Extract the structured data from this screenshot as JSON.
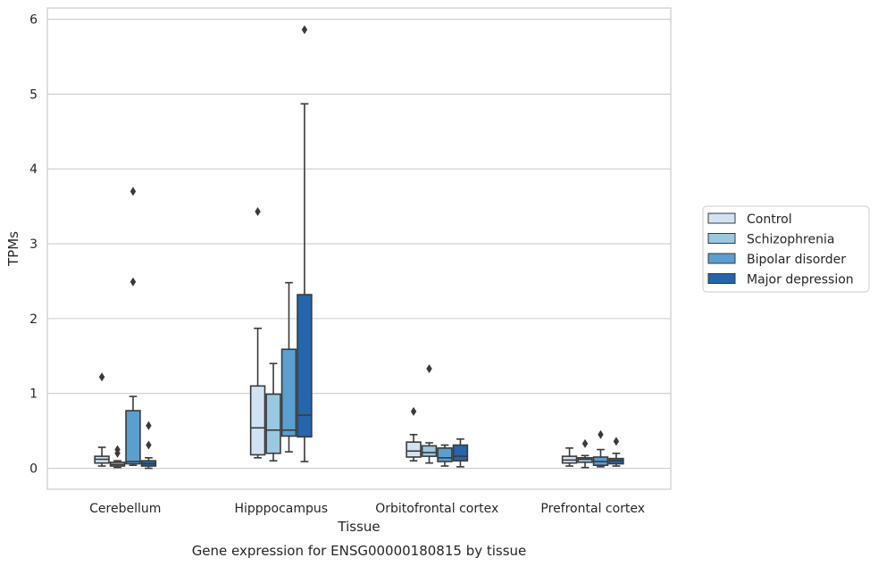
{
  "chart_data": {
    "type": "box",
    "xlabel": "Tissue",
    "ylabel": "TPMs",
    "caption": "Gene expression for ENSG00000180815 by tissue",
    "ylim": [
      -0.28,
      6.15
    ],
    "yticks": [
      "0",
      "1",
      "2",
      "3",
      "4",
      "5",
      "6"
    ],
    "grid": "horizontal",
    "legend_position": "right",
    "categories": [
      "Cerebellum",
      "Hipppocampus",
      "Orbitofrontal cortex",
      "Prefrontal cortex"
    ],
    "series": [
      {
        "name": "Control",
        "color": "#d1e3f3",
        "boxes": [
          {
            "whisker_low": 0.03,
            "q1": 0.07,
            "median": 0.12,
            "q3": 0.16,
            "whisker_high": 0.28,
            "outliers": [
              1.22
            ]
          },
          {
            "whisker_low": 0.14,
            "q1": 0.18,
            "median": 0.54,
            "q3": 1.1,
            "whisker_high": 1.87,
            "outliers": [
              3.43
            ]
          },
          {
            "whisker_low": 0.1,
            "q1": 0.15,
            "median": 0.23,
            "q3": 0.35,
            "whisker_high": 0.45,
            "outliers": [
              0.76
            ]
          },
          {
            "whisker_low": 0.03,
            "q1": 0.07,
            "median": 0.11,
            "q3": 0.16,
            "whisker_high": 0.27,
            "outliers": []
          }
        ]
      },
      {
        "name": "Schizophrenia",
        "color": "#9ac8e0",
        "boxes": [
          {
            "whisker_low": 0.01,
            "q1": 0.03,
            "median": 0.05,
            "q3": 0.08,
            "whisker_high": 0.1,
            "outliers": [
              0.2,
              0.25
            ]
          },
          {
            "whisker_low": 0.1,
            "q1": 0.2,
            "median": 0.51,
            "q3": 0.99,
            "whisker_high": 1.4,
            "outliers": []
          },
          {
            "whisker_low": 0.07,
            "q1": 0.16,
            "median": 0.21,
            "q3": 0.3,
            "whisker_high": 0.34,
            "outliers": [
              1.33
            ]
          },
          {
            "whisker_low": 0.01,
            "q1": 0.08,
            "median": 0.12,
            "q3": 0.14,
            "whisker_high": 0.17,
            "outliers": [
              0.33
            ]
          }
        ]
      },
      {
        "name": "Bipolar disorder",
        "color": "#5a9fcf",
        "boxes": [
          {
            "whisker_low": 0.04,
            "q1": 0.06,
            "median": 0.09,
            "q3": 0.77,
            "whisker_high": 0.96,
            "outliers": [
              2.49,
              3.7
            ]
          },
          {
            "whisker_low": 0.22,
            "q1": 0.43,
            "median": 0.51,
            "q3": 1.59,
            "whisker_high": 2.48,
            "outliers": []
          },
          {
            "whisker_low": 0.03,
            "q1": 0.09,
            "median": 0.14,
            "q3": 0.27,
            "whisker_high": 0.31,
            "outliers": []
          },
          {
            "whisker_low": 0.02,
            "q1": 0.04,
            "median": 0.09,
            "q3": 0.15,
            "whisker_high": 0.25,
            "outliers": [
              0.45
            ]
          }
        ]
      },
      {
        "name": "Major depression",
        "color": "#2565ab",
        "boxes": [
          {
            "whisker_low": 0.0,
            "q1": 0.03,
            "median": 0.06,
            "q3": 0.1,
            "whisker_high": 0.14,
            "outliers": [
              0.31,
              0.57
            ]
          },
          {
            "whisker_low": 0.09,
            "q1": 0.42,
            "median": 0.71,
            "q3": 2.32,
            "whisker_high": 4.87,
            "outliers": [
              5.86
            ]
          },
          {
            "whisker_low": 0.02,
            "q1": 0.1,
            "median": 0.16,
            "q3": 0.31,
            "whisker_high": 0.39,
            "outliers": []
          },
          {
            "whisker_low": 0.03,
            "q1": 0.06,
            "median": 0.1,
            "q3": 0.13,
            "whisker_high": 0.2,
            "outliers": [
              0.36
            ]
          }
        ]
      }
    ]
  }
}
